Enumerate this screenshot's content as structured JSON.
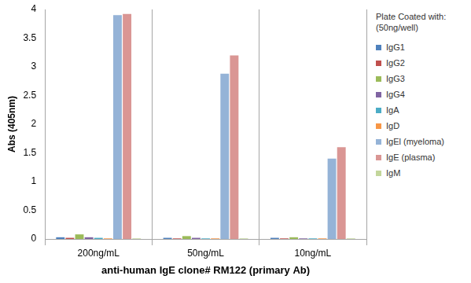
{
  "chart_data": {
    "type": "bar",
    "x_label": "anti-human IgE clone# RM122 (primary Ab)",
    "y_label": "Abs (405nm)",
    "categories": [
      "200ng/mL",
      "50ng/mL",
      "10ng/mL"
    ],
    "series": [
      {
        "name": "IgG1",
        "color": "#4f81bd",
        "values": [
          0.03,
          0.02,
          0.02
        ]
      },
      {
        "name": "IgG2",
        "color": "#c0504d",
        "values": [
          0.02,
          0.01,
          0.01
        ]
      },
      {
        "name": "IgG3",
        "color": "#9bbb59",
        "values": [
          0.08,
          0.05,
          0.03
        ]
      },
      {
        "name": "IgG4",
        "color": "#8064a2",
        "values": [
          0.03,
          0.02,
          0.01
        ]
      },
      {
        "name": "IgA",
        "color": "#4bacc6",
        "values": [
          0.02,
          0.01,
          0.01
        ]
      },
      {
        "name": "IgD",
        "color": "#f79646",
        "values": [
          0.01,
          0.01,
          0.01
        ]
      },
      {
        "name": "IgEl (myeloma)",
        "color": "#95b3d7",
        "values": [
          3.9,
          2.88,
          1.4
        ]
      },
      {
        "name": "IgE (plasma)",
        "color": "#da9694",
        "values": [
          3.92,
          3.2,
          1.6
        ]
      },
      {
        "name": "IgM",
        "color": "#c3d69b",
        "values": [
          0.01,
          0.01,
          0.01
        ]
      }
    ],
    "ylim": [
      0,
      4
    ],
    "yticks": [
      0,
      0.5,
      1,
      1.5,
      2,
      2.5,
      3,
      3.5,
      4
    ],
    "grid": false,
    "legend": "right",
    "legend_title": "Plate Coated with: (50ng/well)"
  }
}
